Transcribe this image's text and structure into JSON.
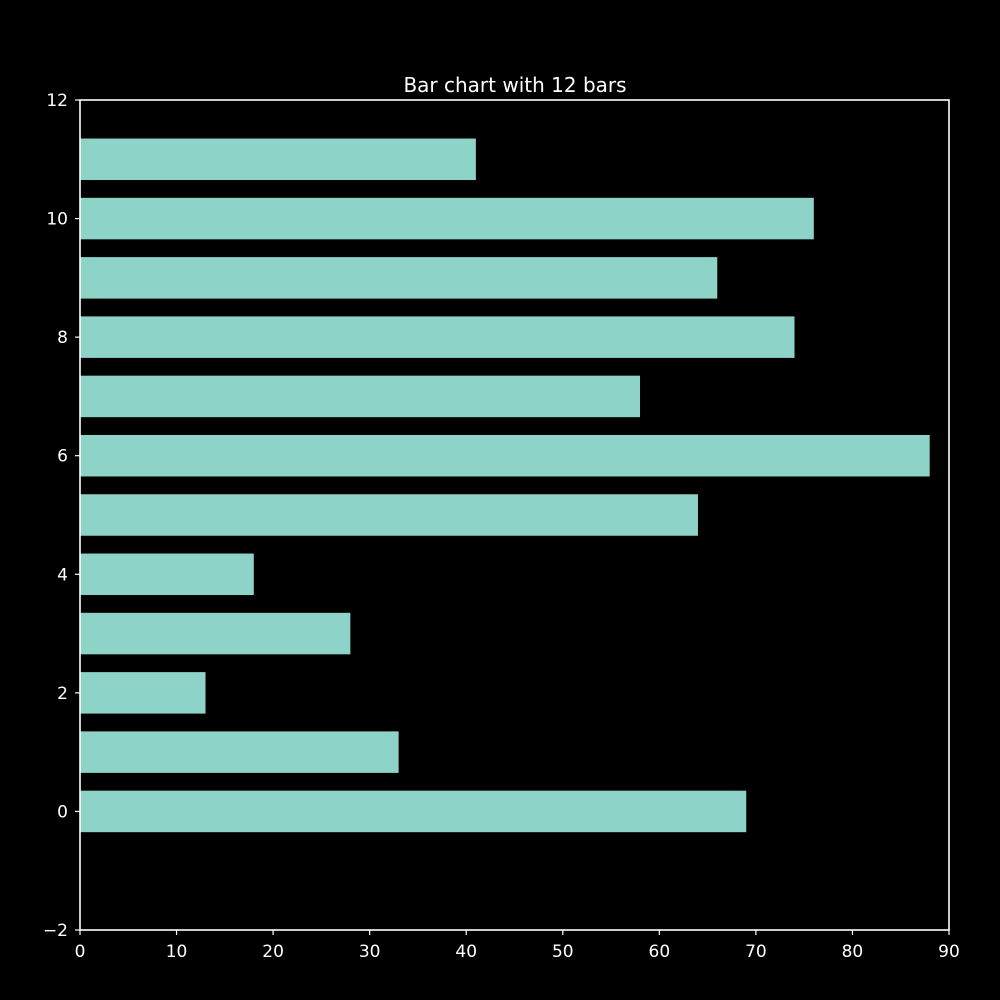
{
  "chart_data": {
    "type": "bar",
    "orientation": "horizontal",
    "title": "Bar chart with 12 bars",
    "xlabel": "",
    "ylabel": "",
    "categories": [
      0,
      1,
      2,
      3,
      4,
      5,
      6,
      7,
      8,
      9,
      10,
      11
    ],
    "values": [
      69,
      33,
      13,
      28,
      18,
      64,
      88,
      58,
      74,
      66,
      76,
      41
    ],
    "xlim": [
      0,
      90
    ],
    "ylim": [
      -2,
      12
    ],
    "xticks": [
      0,
      10,
      20,
      30,
      40,
      50,
      60,
      70,
      80,
      90
    ],
    "yticks": [
      -2,
      0,
      2,
      4,
      6,
      8,
      10,
      12
    ],
    "xtick_labels": [
      "0",
      "10",
      "20",
      "30",
      "40",
      "50",
      "60",
      "70",
      "80",
      "90"
    ],
    "ytick_labels": [
      "−2",
      "0",
      "2",
      "4",
      "6",
      "8",
      "10",
      "12"
    ],
    "bar_height": 0.7,
    "grid": false,
    "legend": "none",
    "colors": {
      "background": "#000000",
      "bar": "#8dd3c7",
      "axis": "#ffffff",
      "text": "#ffffff"
    }
  }
}
